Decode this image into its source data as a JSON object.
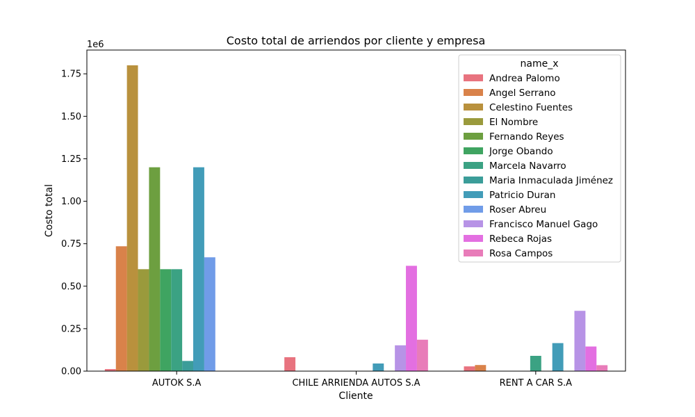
{
  "chart_data": {
    "type": "bar",
    "title": "Costo total de arriendos por cliente y empresa",
    "xlabel": "Cliente",
    "ylabel": "Costo total",
    "y_scale_label": "1e6",
    "ylim": [
      0,
      1890000
    ],
    "yticks": [
      0,
      250000,
      500000,
      750000,
      1000000,
      1250000,
      1500000,
      1750000
    ],
    "ytick_labels": [
      "0.00",
      "0.25",
      "0.50",
      "0.75",
      "1.00",
      "1.25",
      "1.50",
      "1.75"
    ],
    "categories": [
      "AUTOK S.A",
      "CHILE ARRIENDA AUTOS S.A",
      "RENT A CAR S.A"
    ],
    "legend": {
      "title": "name_x",
      "position": "upper right"
    },
    "series": [
      {
        "name": "Andrea Palomo",
        "color": "#e8737f",
        "values": [
          12000,
          82000,
          28000
        ]
      },
      {
        "name": "Angel Serrano",
        "color": "#d9824a",
        "values": [
          735000,
          0,
          36000
        ]
      },
      {
        "name": "Celestino Fuentes",
        "color": "#b9913d",
        "values": [
          1800000,
          0,
          0
        ]
      },
      {
        "name": "El Nombre",
        "color": "#9a9a3c",
        "values": [
          600000,
          0,
          0
        ]
      },
      {
        "name": "Fernando Reyes",
        "color": "#6d9f40",
        "values": [
          1200000,
          0,
          0
        ]
      },
      {
        "name": "Jorge Obando",
        "color": "#3fa461",
        "values": [
          600000,
          0,
          0
        ]
      },
      {
        "name": "Marcela Navarro",
        "color": "#3ba283",
        "values": [
          600000,
          0,
          90000
        ]
      },
      {
        "name": "Maria Inmaculada Jiménez",
        "color": "#3b9d99",
        "values": [
          60000,
          0,
          0
        ]
      },
      {
        "name": "Patricio Duran",
        "color": "#429cb8",
        "values": [
          1200000,
          45000,
          165000
        ]
      },
      {
        "name": "Roser Abreu",
        "color": "#709ce8",
        "values": [
          670000,
          0,
          0
        ]
      },
      {
        "name": "Francisco Manuel Gago",
        "color": "#b793e6",
        "values": [
          0,
          152000,
          355000
        ]
      },
      {
        "name": "Rebeca Rojas",
        "color": "#e36fe1",
        "values": [
          0,
          620000,
          145000
        ]
      },
      {
        "name": "Rosa Campos",
        "color": "#e87cb9",
        "values": [
          0,
          185000,
          35000
        ]
      }
    ]
  }
}
